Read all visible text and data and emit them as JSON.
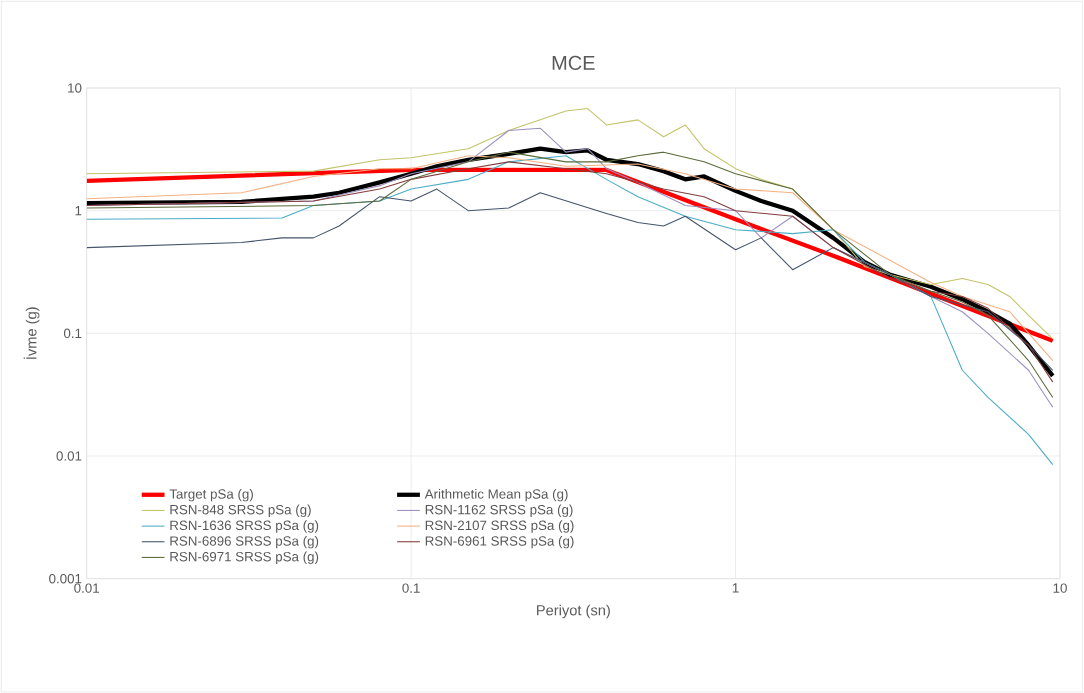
{
  "chart_data": {
    "type": "line",
    "title": "MCE",
    "xlabel": "Periyot (sn)",
    "ylabel": "İvme (g)",
    "log": "xy",
    "grid": true,
    "legend": "bottom left",
    "line_style": "solid",
    "xlim": [
      0.01,
      10
    ],
    "xticks": [
      0.01,
      0.1,
      1,
      10
    ],
    "ylim": [
      0.001,
      10
    ],
    "yticks": [
      0.001,
      0.01,
      0.1,
      1,
      10
    ],
    "series": [
      {
        "name": "Target pSa (g)",
        "color": "#ff0000",
        "x": [
          0.01,
          0.1,
          0.4,
          1,
          2,
          4,
          9.5
        ],
        "values": [
          1.75,
          2.15,
          2.15,
          0.85,
          0.43,
          0.21,
          0.087
        ]
      },
      {
        "name": "Arithmetic Mean pSa (g)",
        "color": "#000000",
        "x": [
          0.01,
          0.03,
          0.05,
          0.06,
          0.08,
          0.1,
          0.12,
          0.15,
          0.2,
          0.25,
          0.3,
          0.35,
          0.4,
          0.5,
          0.6,
          0.7,
          0.8,
          1,
          1.2,
          1.5,
          2,
          2.5,
          3,
          4,
          5,
          6,
          7,
          8,
          9.5
        ],
        "values": [
          1.15,
          1.18,
          1.3,
          1.4,
          1.7,
          2.0,
          2.3,
          2.6,
          2.9,
          3.2,
          3.0,
          3.1,
          2.6,
          2.4,
          2.1,
          1.8,
          1.9,
          1.45,
          1.2,
          1.0,
          0.6,
          0.38,
          0.3,
          0.24,
          0.19,
          0.15,
          0.12,
          0.08,
          0.045
        ]
      },
      {
        "name": "RSN-848 SRSS pSa (g)",
        "color": "#c3c36a",
        "x": [
          0.01,
          0.05,
          0.08,
          0.1,
          0.15,
          0.2,
          0.25,
          0.3,
          0.35,
          0.4,
          0.5,
          0.6,
          0.7,
          0.8,
          1,
          1.2,
          1.5,
          2,
          2.5,
          3,
          4,
          5,
          6,
          7,
          8,
          9.5
        ],
        "values": [
          2.0,
          2.1,
          2.6,
          2.7,
          3.2,
          4.5,
          5.5,
          6.5,
          6.8,
          5.0,
          5.5,
          4.0,
          5.0,
          3.2,
          2.2,
          1.8,
          1.5,
          0.7,
          0.35,
          0.3,
          0.25,
          0.28,
          0.25,
          0.2,
          0.14,
          0.09
        ]
      },
      {
        "name": "RSN-1162 SRSS pSa (g)",
        "color": "#9b8fc0",
        "x": [
          0.01,
          0.05,
          0.08,
          0.1,
          0.15,
          0.2,
          0.25,
          0.3,
          0.35,
          0.4,
          0.5,
          0.7,
          1,
          1.2,
          1.5,
          2,
          3,
          4,
          5,
          6,
          8,
          9.5
        ],
        "values": [
          1.1,
          1.2,
          1.6,
          2.0,
          2.5,
          4.5,
          4.7,
          3.0,
          3.2,
          2.2,
          1.7,
          1.1,
          1.0,
          0.6,
          0.9,
          0.5,
          0.3,
          0.2,
          0.15,
          0.1,
          0.05,
          0.025
        ]
      },
      {
        "name": "RSN-1636 SRSS pSa (g)",
        "color": "#4bacc6",
        "x": [
          0.01,
          0.04,
          0.05,
          0.08,
          0.1,
          0.15,
          0.2,
          0.3,
          0.4,
          0.5,
          0.7,
          1,
          1.5,
          2,
          2.5,
          3,
          4,
          5,
          6,
          8,
          9.5
        ],
        "values": [
          0.85,
          0.87,
          1.1,
          1.2,
          1.5,
          1.8,
          2.5,
          2.8,
          1.8,
          1.3,
          0.9,
          0.7,
          0.65,
          0.7,
          0.38,
          0.3,
          0.2,
          0.05,
          0.03,
          0.015,
          0.0085
        ]
      },
      {
        "name": "RSN-2107 SRSS pSa (g)",
        "color": "#f4b183",
        "x": [
          0.01,
          0.03,
          0.05,
          0.08,
          0.1,
          0.15,
          0.2,
          0.3,
          0.5,
          0.7,
          1,
          1.5,
          2,
          4,
          5,
          7,
          9.5
        ],
        "values": [
          1.25,
          1.4,
          1.9,
          2.2,
          2.2,
          2.8,
          2.7,
          2.3,
          2.4,
          2.0,
          1.5,
          1.4,
          0.7,
          0.26,
          0.2,
          0.15,
          0.06
        ]
      },
      {
        "name": "RSN-6896 SRSS pSa (g)",
        "color": "#44546a",
        "x": [
          0.01,
          0.03,
          0.04,
          0.05,
          0.06,
          0.08,
          0.1,
          0.12,
          0.15,
          0.2,
          0.25,
          0.4,
          0.5,
          0.6,
          0.7,
          1,
          1.2,
          1.5,
          2,
          3,
          4,
          6,
          8,
          9.5
        ],
        "values": [
          0.5,
          0.55,
          0.6,
          0.6,
          0.75,
          1.3,
          1.2,
          1.5,
          1.0,
          1.05,
          1.4,
          0.95,
          0.8,
          0.75,
          0.9,
          0.48,
          0.6,
          0.33,
          0.5,
          0.3,
          0.2,
          0.15,
          0.08,
          0.05
        ]
      },
      {
        "name": "RSN-6961 SRSS pSa (g)",
        "color": "#843c3c",
        "x": [
          0.01,
          0.05,
          0.08,
          0.1,
          0.15,
          0.2,
          0.3,
          0.4,
          0.6,
          0.8,
          1,
          1.5,
          2,
          3,
          4,
          5,
          6,
          8,
          9.5
        ],
        "values": [
          1.1,
          1.2,
          1.5,
          1.8,
          2.2,
          2.5,
          2.2,
          2.0,
          1.5,
          1.3,
          1.0,
          0.9,
          0.5,
          0.28,
          0.22,
          0.2,
          0.16,
          0.08,
          0.04
        ]
      },
      {
        "name": "RSN-6971 SRSS pSa (g)",
        "color": "#5b6b3a",
        "x": [
          0.01,
          0.05,
          0.08,
          0.1,
          0.15,
          0.2,
          0.3,
          0.4,
          0.5,
          0.6,
          0.8,
          1,
          1.5,
          2,
          3,
          4,
          5,
          6,
          8,
          9.5
        ],
        "values": [
          1.05,
          1.1,
          1.2,
          1.8,
          2.5,
          3.0,
          2.5,
          2.5,
          2.8,
          3.0,
          2.5,
          2.0,
          1.5,
          0.7,
          0.3,
          0.22,
          0.18,
          0.14,
          0.06,
          0.03
        ]
      }
    ]
  }
}
